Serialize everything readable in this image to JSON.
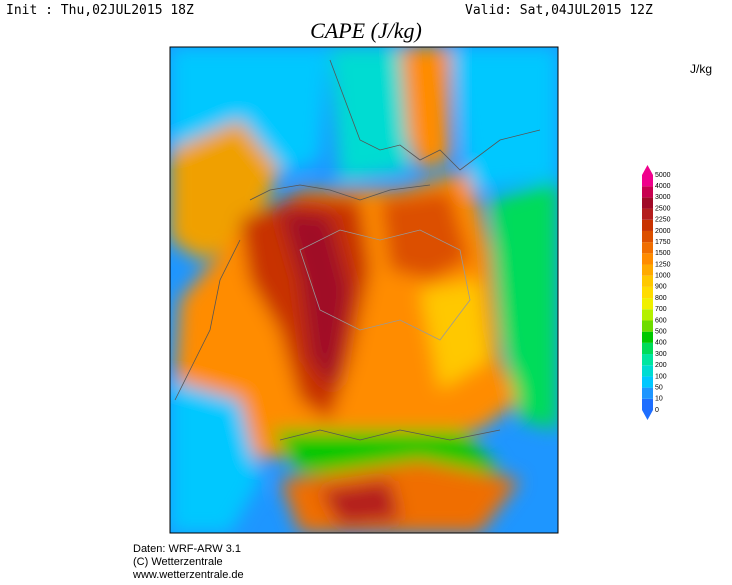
{
  "header": {
    "init": "Init : Thu,02JUL2015 18Z",
    "valid": "Valid: Sat,04JUL2015 12Z"
  },
  "title": "CAPE (J/kg)",
  "colorbar": {
    "unit": "J/kg",
    "levels": [
      0,
      10,
      50,
      100,
      200,
      300,
      400,
      500,
      600,
      700,
      800,
      900,
      1000,
      1250,
      1500,
      1750,
      2000,
      2250,
      2500,
      3000,
      4000,
      5000
    ],
    "colors": [
      "#1e6eff",
      "#1e96ff",
      "#00c8ff",
      "#00dcd2",
      "#00e6a0",
      "#00dc5a",
      "#00c800",
      "#6edc00",
      "#b4f000",
      "#f0f000",
      "#ffdc00",
      "#ffc800",
      "#ffaa00",
      "#ff8c00",
      "#f06e00",
      "#dc5000",
      "#c83200",
      "#b41e1e",
      "#a00a28",
      "#c80050",
      "#f0008c"
    ]
  },
  "footer": {
    "lines": [
      "Daten: WRF-ARW 3.1",
      "(C) Wetterzentrale",
      "www.wetterzentrale.de"
    ]
  }
}
